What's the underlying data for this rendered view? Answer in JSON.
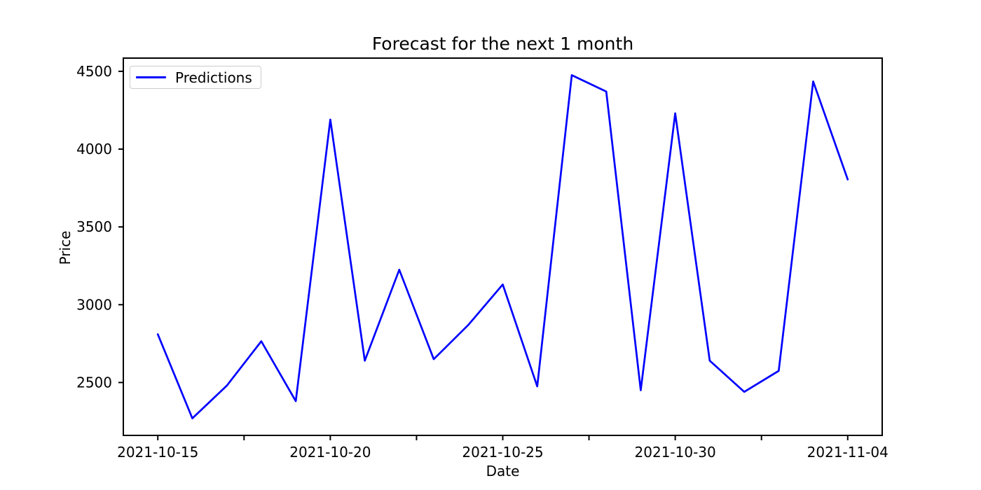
{
  "figure": {
    "title": "Forecast for the next 1 month",
    "xlabel": "Date",
    "ylabel": "Price"
  },
  "legend": {
    "entries": [
      {
        "label": "Predictions",
        "color": "#0000ff"
      }
    ],
    "position": "upper-left"
  },
  "chart_data": {
    "type": "line",
    "title": "Forecast for the next 1 month",
    "xlabel": "Date",
    "ylabel": "Price",
    "grid": false,
    "legend_position": "upper left",
    "series": [
      {
        "name": "Predictions",
        "color": "#0000ff",
        "x": [
          "2021-10-15",
          "2021-10-16",
          "2021-10-17",
          "2021-10-18",
          "2021-10-19",
          "2021-10-20",
          "2021-10-21",
          "2021-10-22",
          "2021-10-23",
          "2021-10-24",
          "2021-10-25",
          "2021-10-26",
          "2021-10-27",
          "2021-10-28",
          "2021-10-29",
          "2021-10-30",
          "2021-10-31",
          "2021-11-01",
          "2021-11-02",
          "2021-11-03",
          "2021-11-04"
        ],
        "values": [
          2810,
          2270,
          2480,
          2765,
          2380,
          4190,
          2640,
          3225,
          2650,
          2870,
          3130,
          2475,
          4475,
          4370,
          2450,
          4230,
          2640,
          2440,
          2575,
          4435,
          3805
        ]
      }
    ],
    "ylim": [
      2160,
      4585
    ],
    "xlim_index": [
      -1,
      21
    ],
    "yticks": [
      2500,
      3000,
      3500,
      4000,
      4500
    ],
    "xticks": [
      {
        "pos": 0,
        "label": "2021-10-15"
      },
      {
        "pos": 2.5,
        "label": ""
      },
      {
        "pos": 5,
        "label": "2021-10-20"
      },
      {
        "pos": 7.5,
        "label": ""
      },
      {
        "pos": 10,
        "label": "2021-10-25"
      },
      {
        "pos": 12.5,
        "label": ""
      },
      {
        "pos": 15,
        "label": "2021-10-30"
      },
      {
        "pos": 17.5,
        "label": ""
      },
      {
        "pos": 20,
        "label": "2021-11-04"
      }
    ],
    "colors": {
      "line": "#0000ff",
      "axes": "#000000",
      "text": "#000000",
      "legend_border": "#cccccc",
      "background": "#ffffff"
    }
  }
}
